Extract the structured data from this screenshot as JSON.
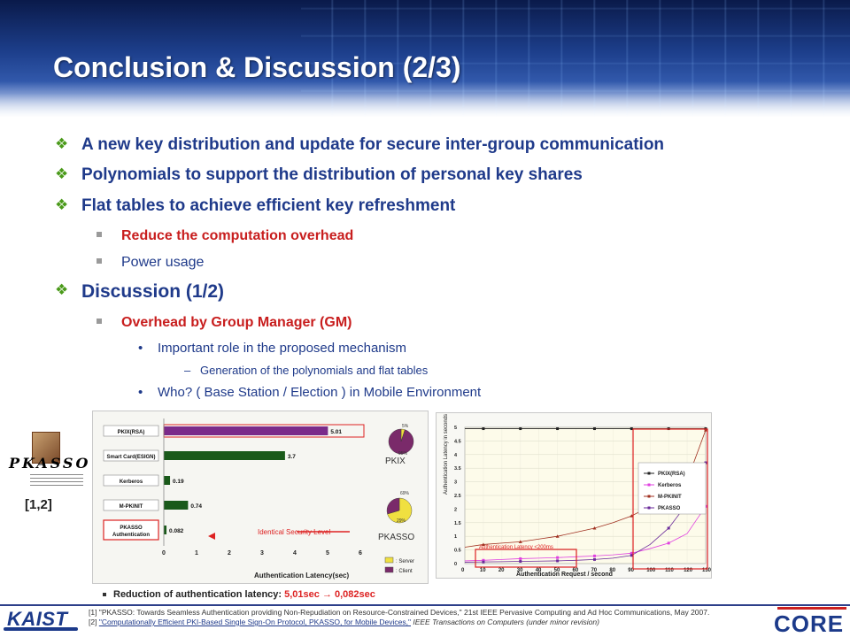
{
  "slide": {
    "title": "Conclusion & Discussion (2/3)"
  },
  "bullets": {
    "b1": "A new key distribution and update for secure inter-group communication",
    "b2": "Polynomials to support the distribution of personal key shares",
    "b3": "Flat tables to achieve efficient key refreshment",
    "b3_1": "Reduce the computation overhead",
    "b3_2": "Power usage",
    "b4": "Discussion (1/2)",
    "b4_1": "Overhead by Group Manager (GM)",
    "b4_1_1": "Important role in the proposed mechanism",
    "b4_1_1_1": "Generation of the polynomials and flat tables",
    "b4_1_2": "Who? ( Base Station / Election ) in Mobile Environment"
  },
  "logo": {
    "word": "PKASSO",
    "ref": "[1,2]"
  },
  "charts": {
    "latency_caption_prefix": "Reduction of authentication latency: ",
    "latency_caption_value": "5,01sec → 0,082sec",
    "pie_labels": {
      "pkix": "PKIX",
      "pkasso": "PKASSO",
      "pkix_top": "5%",
      "pkix_bottom": "95%",
      "pkasso_top": "69%",
      "pkasso_bottom": "29%",
      "legend_server": ": Server",
      "legend_client": ": Client"
    },
    "annotations": {
      "identical": "Identical Security Level",
      "auth_latency": "Authentication Latency <200ms"
    }
  },
  "chart_data": [
    {
      "type": "bar",
      "orientation": "horizontal",
      "categories": [
        "PKIX(RSA)",
        "Smart Card(ESIGN)",
        "Kerberos",
        "M-PKINIT",
        "PKASSO Authentication"
      ],
      "values": [
        5.01,
        3.7,
        0.19,
        0.74,
        0.082
      ],
      "value_labels": [
        "5.01",
        "3.7",
        "0.19",
        "0.74",
        "0.082"
      ],
      "xlabel": "Authentication Latency(sec)",
      "xlim": [
        0,
        6
      ],
      "xticks": [
        0,
        1,
        2,
        3,
        4,
        5,
        6
      ],
      "colors": [
        "#7a2a8a",
        "#1a5a1a",
        "#1a5a1a",
        "#1a5a1a",
        "#1a5a1a"
      ]
    },
    {
      "type": "pie",
      "name": "PKIX",
      "slices": [
        {
          "label": "Server",
          "value": 5
        },
        {
          "label": "Client",
          "value": 95
        }
      ]
    },
    {
      "type": "pie",
      "name": "PKASSO",
      "slices": [
        {
          "label": "Server",
          "value": 69
        },
        {
          "label": "Client",
          "value": 29
        }
      ]
    },
    {
      "type": "line",
      "ylabel": "Authentication Latency in seconds",
      "xlabel": "Authentication Request / second",
      "categories": [
        "0",
        "10",
        "20",
        "30",
        "40",
        "50",
        "60",
        "70",
        "80",
        "90",
        "100",
        "110",
        "120",
        "130"
      ],
      "ylim": [
        0,
        5
      ],
      "yticks": [
        0,
        0.5,
        1,
        1.5,
        2,
        2.5,
        3,
        3.5,
        4,
        4.5,
        5
      ],
      "series": [
        {
          "name": "PKIX(RSA)",
          "color": "#222222",
          "values": [
            4.95,
            4.95,
            4.95,
            4.95,
            4.95,
            4.95,
            4.95,
            4.95,
            4.95,
            4.95,
            4.95,
            4.95,
            4.95,
            4.95
          ]
        },
        {
          "name": "Kerberos",
          "color": "#e040e0",
          "values": [
            0.1,
            0.12,
            0.15,
            0.18,
            0.2,
            0.22,
            0.25,
            0.28,
            0.32,
            0.38,
            0.55,
            0.75,
            1.1,
            2.1
          ]
        },
        {
          "name": "M-PKINIT",
          "color": "#a03020",
          "values": [
            0.6,
            0.7,
            0.75,
            0.8,
            0.9,
            1.0,
            1.15,
            1.3,
            1.5,
            1.75,
            2.1,
            2.5,
            3.05,
            4.9
          ]
        },
        {
          "name": "PKASSO",
          "color": "#6a2a9a",
          "values": [
            0.05,
            0.06,
            0.07,
            0.08,
            0.09,
            0.1,
            0.12,
            0.15,
            0.2,
            0.3,
            0.7,
            1.3,
            2.2,
            3.7
          ]
        }
      ]
    }
  ],
  "footer": {
    "kaist": "KAIST",
    "core": "CORE",
    "ref1": "[1] \"PKASSO: Towards Seamless Authentication providing Non-Repudiation on Resource-Constrained Devices,\" 21st IEEE Pervasive Computing and Ad Hoc Communications, May 2007.",
    "ref2_prefix": "[2] ",
    "ref2_link": "\"Computationally Efficient PKI-Based Single Sign-On Protocol, PKASSO, for Mobile Devices,\"",
    "ref2_suffix": " IEEE Transactions on Computers (under minor revision)"
  }
}
